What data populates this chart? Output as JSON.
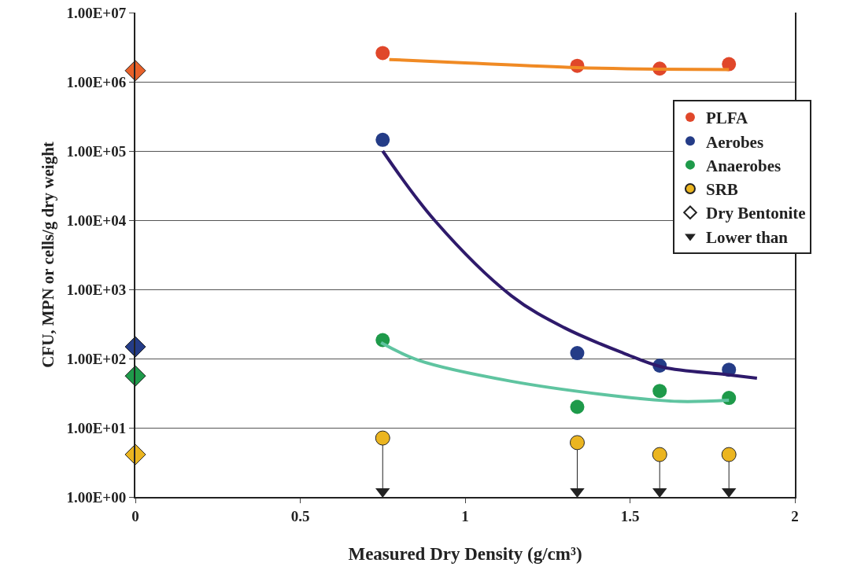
{
  "chart_data": {
    "type": "scatter",
    "xlabel": "Measured Dry Density (g/cm³)",
    "ylabel": "CFU, MPN or cells/g dry weight",
    "log": "y",
    "grid": "y",
    "legend": "right",
    "marker": "circle",
    "xlim": [
      0,
      2
    ],
    "xticks": [
      0,
      0.5,
      1,
      1.5,
      2
    ],
    "ylim": [
      1,
      10000000
    ],
    "yticks": [
      {
        "value": 1,
        "label": "1.00E+00"
      },
      {
        "value": 10,
        "label": "1.00E+01"
      },
      {
        "value": 100,
        "label": "1.00E+02"
      },
      {
        "value": 1000,
        "label": "1.00E+03"
      },
      {
        "value": 10000,
        "label": "1.00E+04"
      },
      {
        "value": 100000,
        "label": "1.00E+05"
      },
      {
        "value": 1000000,
        "label": "1.00E+06"
      },
      {
        "value": 10000000,
        "label": "1.00E+07"
      }
    ],
    "series": [
      {
        "name": "PLFA",
        "color": "#e0472a",
        "x": [
          0.75,
          1.34,
          1.59,
          1.8
        ],
        "values": [
          2600000,
          1700000,
          1550000,
          1800000
        ]
      },
      {
        "name": "Aerobes",
        "color": "#243c87",
        "x": [
          0.75,
          1.34,
          1.59,
          1.8
        ],
        "values": [
          145000,
          120,
          79,
          69
        ]
      },
      {
        "name": "Anaerobes",
        "color": "#1e9a4a",
        "x": [
          0.75,
          1.34,
          1.59,
          1.8
        ],
        "values": [
          185,
          20,
          34,
          27
        ]
      },
      {
        "name": "SRB",
        "color": "#ebb520",
        "x": [
          0.75,
          1.34,
          1.59,
          1.8
        ],
        "values": [
          7.1,
          6.1,
          4.1,
          4.1
        ],
        "errors": [
          [
            1.2,
            7.1
          ],
          [
            1.2,
            6.1
          ],
          [
            1.2,
            4.1
          ],
          [
            1.2,
            4.1
          ]
        ]
      },
      {
        "name": "Dry Bentonite",
        "marker": "diamond",
        "colors": [
          "#e8612a",
          "#243c87",
          "#1e9a4a",
          "#ebb520"
        ],
        "color": "#ffffff",
        "x": [
          0,
          0,
          0,
          0
        ],
        "values": [
          1450000,
          148,
          56,
          4.1
        ]
      },
      {
        "name": "Lower than",
        "marker": "triangle",
        "color": "#222222",
        "x": [
          0.75,
          1.34,
          1.59,
          1.8
        ],
        "values": [
          1.2,
          1.2,
          1.2,
          1.2
        ]
      },
      {
        "type": "line",
        "marker": "none",
        "color": "#f08a24",
        "x": [
          0.77,
          1.0,
          1.34,
          1.59,
          1.8
        ],
        "values": [
          2100000,
          1870000,
          1600000,
          1520000,
          1500000
        ]
      },
      {
        "type": "line",
        "marker": "none",
        "color": "#2e1a6b",
        "x": [
          0.75,
          0.907,
          1.14,
          1.3,
          1.48,
          1.6,
          1.79,
          1.885
        ],
        "values": [
          100000,
          10000,
          810,
          280,
          120,
          75,
          59,
          52
        ]
      },
      {
        "type": "line",
        "marker": "none",
        "color": "#5fc4a0",
        "x": [
          0.745,
          0.86,
          1.14,
          1.48,
          1.65,
          1.8
        ],
        "values": [
          170,
          94,
          47,
          28,
          24,
          25
        ]
      }
    ]
  }
}
